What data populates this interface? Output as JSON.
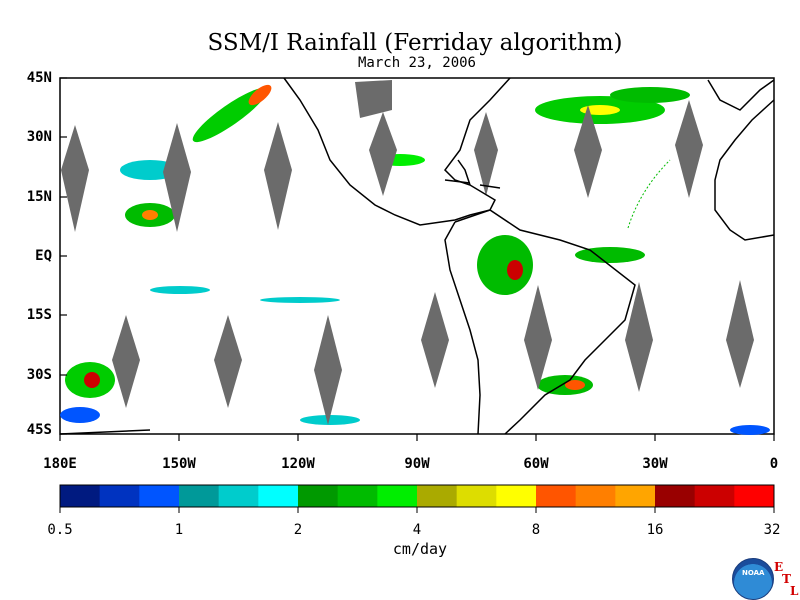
{
  "title": "SSM/I Rainfall (Ferriday algorithm)",
  "subtitle": "March 23, 2006",
  "map": {
    "lat_labels": [
      "45N",
      "30N",
      "15N",
      "EQ",
      "15S",
      "30S",
      "45S"
    ],
    "lon_labels": [
      "180E",
      "150W",
      "120W",
      "90W",
      "60W",
      "30W",
      "0"
    ],
    "land_fill": "#ffffff",
    "coast_color": "#000000",
    "no_data_color": "#6b6b6b"
  },
  "colorbar": {
    "colors": [
      "#001a80",
      "#0033c0",
      "#0055ff",
      "#009999",
      "#00cccc",
      "#00ffff",
      "#009900",
      "#00bb00",
      "#00ee00",
      "#aaaa00",
      "#dddd00",
      "#ffff00",
      "#ff5500",
      "#ff7f00",
      "#ffa500",
      "#990000",
      "#cc0000",
      "#ff0000"
    ],
    "tick_labels": [
      "0.5",
      "1",
      "2",
      "4",
      "8",
      "16",
      "32"
    ],
    "units": "cm/day"
  },
  "logo": {
    "name": "NOAA",
    "etl": [
      "E",
      "T",
      "L"
    ]
  }
}
